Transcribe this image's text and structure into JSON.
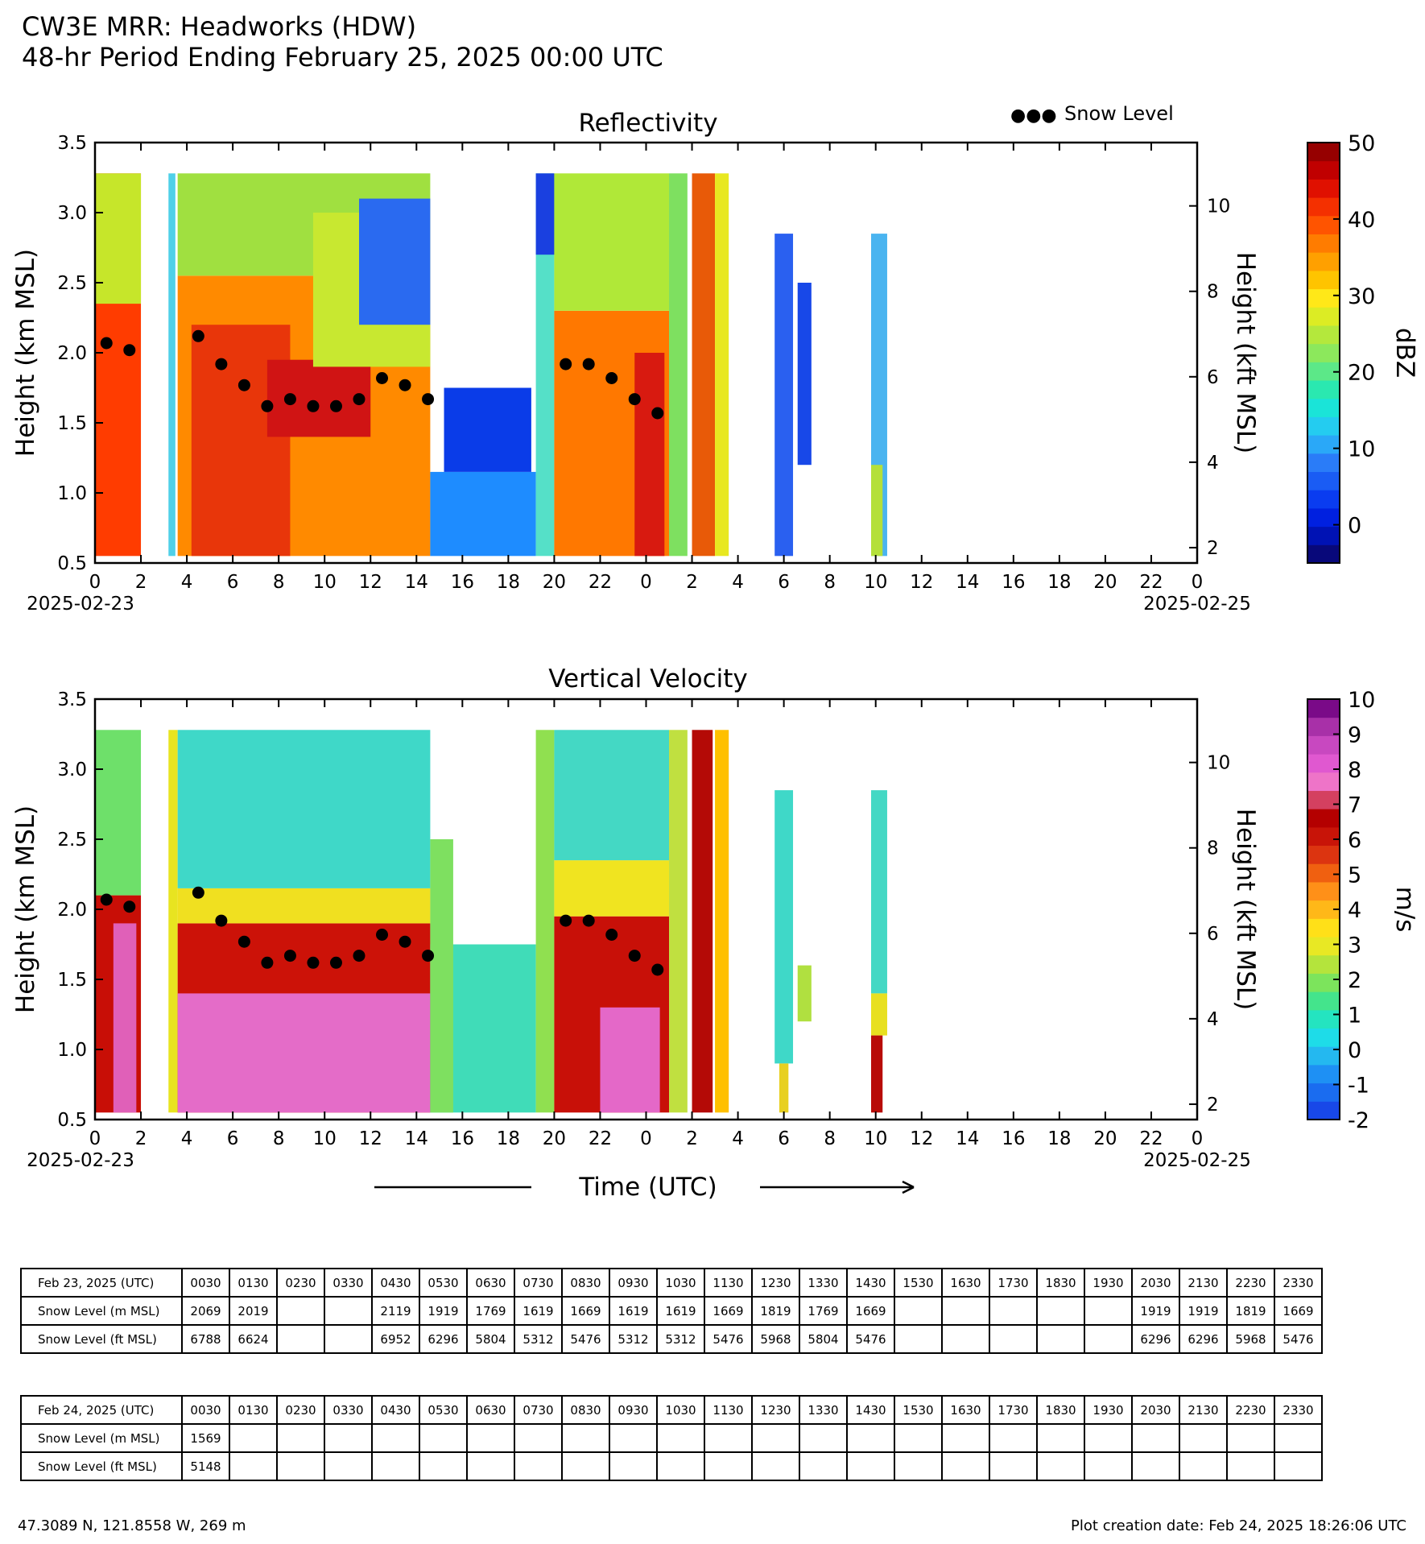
{
  "header": {
    "title_line1": "CW3E MRR: Headworks (HDW)",
    "title_line2": "48-hr Period Ending February 25, 2025 00:00 UTC"
  },
  "legend": {
    "snow_level_label": "Snow Level",
    "marker_glyph": "●●●"
  },
  "axes_text": {
    "y_left_label": "Height (km MSL)",
    "y_right_label": "Height (kft MSL)",
    "x_label": "Time (UTC)",
    "date_start": "2025-02-23",
    "date_end": "2025-02-25"
  },
  "chart_data": [
    {
      "type": "heatmap",
      "title": "Reflectivity",
      "ylabel": "Height (km MSL)",
      "ylabel_right": "Height (kft MSL)",
      "xlabel": "",
      "x_ticks": [
        "0",
        "2",
        "4",
        "6",
        "8",
        "10",
        "12",
        "14",
        "16",
        "18",
        "20",
        "22",
        "0",
        "2",
        "4",
        "6",
        "8",
        "10",
        "12",
        "14",
        "16",
        "18",
        "20",
        "22",
        "0"
      ],
      "xlim_hours": [
        0,
        48
      ],
      "y_ticks": [
        "0.5",
        "1.0",
        "1.5",
        "2.0",
        "2.5",
        "3.0",
        "3.5"
      ],
      "ylim": [
        0.5,
        3.5
      ],
      "y_right_ticks": [
        "2",
        "4",
        "6",
        "8",
        "10"
      ],
      "colorbar": {
        "label": "dBZ",
        "ticks": [
          "50",
          "40",
          "30",
          "20",
          "10",
          "0"
        ],
        "range": [
          -5,
          50
        ]
      },
      "legend_position": "top-right",
      "grid": false
    },
    {
      "type": "heatmap",
      "title": "Vertical Velocity",
      "ylabel": "Height (km MSL)",
      "ylabel_right": "Height (kft MSL)",
      "xlabel": "Time (UTC)",
      "x_ticks": [
        "0",
        "2",
        "4",
        "6",
        "8",
        "10",
        "12",
        "14",
        "16",
        "18",
        "20",
        "22",
        "0",
        "2",
        "4",
        "6",
        "8",
        "10",
        "12",
        "14",
        "16",
        "18",
        "20",
        "22",
        "0"
      ],
      "xlim_hours": [
        0,
        48
      ],
      "y_ticks": [
        "0.5",
        "1.0",
        "1.5",
        "2.0",
        "2.5",
        "3.0",
        "3.5"
      ],
      "ylim": [
        0.5,
        3.5
      ],
      "y_right_ticks": [
        "2",
        "4",
        "6",
        "8",
        "10"
      ],
      "colorbar": {
        "label": "m/s",
        "ticks": [
          "10",
          "9",
          "8",
          "7",
          "6",
          "5",
          "4",
          "3",
          "2",
          "1",
          "0",
          "-1",
          "-2"
        ],
        "range": [
          -2,
          10
        ]
      },
      "grid": false
    }
  ],
  "snow_level_points": [
    {
      "t": 0.5,
      "km": 2.069
    },
    {
      "t": 1.5,
      "km": 2.019
    },
    {
      "t": 4.5,
      "km": 2.119
    },
    {
      "t": 5.5,
      "km": 1.919
    },
    {
      "t": 6.5,
      "km": 1.769
    },
    {
      "t": 7.5,
      "km": 1.619
    },
    {
      "t": 8.5,
      "km": 1.669
    },
    {
      "t": 9.5,
      "km": 1.619
    },
    {
      "t": 10.5,
      "km": 1.619
    },
    {
      "t": 11.5,
      "km": 1.669
    },
    {
      "t": 12.5,
      "km": 1.819
    },
    {
      "t": 13.5,
      "km": 1.769
    },
    {
      "t": 14.5,
      "km": 1.669
    },
    {
      "t": 20.5,
      "km": 1.919
    },
    {
      "t": 21.5,
      "km": 1.919
    },
    {
      "t": 22.5,
      "km": 1.819
    },
    {
      "t": 23.5,
      "km": 1.669
    },
    {
      "t": 24.5,
      "km": 1.569
    }
  ],
  "reflectivity_blocks": [
    {
      "t0": 0.0,
      "t1": 2.0,
      "k0": 0.55,
      "k1": 3.28,
      "c": "#ff3c00"
    },
    {
      "t0": 0.0,
      "t1": 2.0,
      "k0": 2.35,
      "k1": 3.28,
      "c": "#c6e62a"
    },
    {
      "t0": 3.2,
      "t1": 3.5,
      "k0": 0.55,
      "k1": 3.28,
      "c": "#4fd0e8"
    },
    {
      "t0": 3.6,
      "t1": 14.6,
      "k0": 0.55,
      "k1": 2.55,
      "c": "#ff8a00"
    },
    {
      "t0": 4.2,
      "t1": 8.5,
      "k0": 0.55,
      "k1": 2.2,
      "c": "#e8360a"
    },
    {
      "t0": 7.5,
      "t1": 12.0,
      "k0": 1.4,
      "k1": 1.95,
      "c": "#d01414"
    },
    {
      "t0": 3.6,
      "t1": 14.6,
      "k0": 2.55,
      "k1": 3.28,
      "c": "#a0e040"
    },
    {
      "t0": 9.5,
      "t1": 14.6,
      "k0": 1.9,
      "k1": 3.0,
      "c": "#c8e830"
    },
    {
      "t0": 11.5,
      "t1": 14.6,
      "k0": 2.2,
      "k1": 3.1,
      "c": "#2a6af0"
    },
    {
      "t0": 14.6,
      "t1": 19.2,
      "k0": 0.55,
      "k1": 1.15,
      "c": "#1e8cff"
    },
    {
      "t0": 15.2,
      "t1": 19.0,
      "k0": 1.15,
      "k1": 1.75,
      "c": "#0a3ce8"
    },
    {
      "t0": 19.2,
      "t1": 20.0,
      "k0": 0.55,
      "k1": 3.28,
      "c": "#55e0c8"
    },
    {
      "t0": 19.2,
      "t1": 20.0,
      "k0": 2.7,
      "k1": 3.28,
      "c": "#1a40e0"
    },
    {
      "t0": 20.0,
      "t1": 25.0,
      "k0": 0.55,
      "k1": 2.3,
      "c": "#ff7800"
    },
    {
      "t0": 20.0,
      "t1": 25.0,
      "k0": 2.3,
      "k1": 3.28,
      "c": "#b0e838"
    },
    {
      "t0": 23.5,
      "t1": 24.8,
      "k0": 0.55,
      "k1": 2.0,
      "c": "#d81a10"
    },
    {
      "t0": 25.0,
      "t1": 25.8,
      "k0": 0.55,
      "k1": 3.28,
      "c": "#7ee060"
    },
    {
      "t0": 26.0,
      "t1": 27.0,
      "k0": 0.55,
      "k1": 3.28,
      "c": "#e85a08"
    },
    {
      "t0": 27.0,
      "t1": 27.6,
      "k0": 0.55,
      "k1": 3.28,
      "c": "#e8e820"
    },
    {
      "t0": 29.6,
      "t1": 30.4,
      "k0": 0.55,
      "k1": 2.85,
      "c": "#2a60f0"
    },
    {
      "t0": 30.6,
      "t1": 31.2,
      "k0": 1.2,
      "k1": 2.5,
      "c": "#1848e8"
    },
    {
      "t0": 33.8,
      "t1": 34.5,
      "k0": 0.55,
      "k1": 2.85,
      "c": "#4ab4f0"
    },
    {
      "t0": 33.8,
      "t1": 34.3,
      "k0": 0.55,
      "k1": 1.2,
      "c": "#b4e03a"
    }
  ],
  "velocity_blocks": [
    {
      "t0": 0.0,
      "t1": 2.0,
      "k0": 0.55,
      "k1": 2.1,
      "c": "#c80e06"
    },
    {
      "t0": 0.8,
      "t1": 1.8,
      "k0": 0.55,
      "k1": 1.9,
      "c": "#e060b8"
    },
    {
      "t0": 0.0,
      "t1": 2.0,
      "k0": 2.1,
      "k1": 3.28,
      "c": "#6ee06a"
    },
    {
      "t0": 3.2,
      "t1": 3.6,
      "k0": 0.55,
      "k1": 3.28,
      "c": "#e8e420"
    },
    {
      "t0": 3.6,
      "t1": 14.6,
      "k0": 0.55,
      "k1": 1.9,
      "c": "#cc1208"
    },
    {
      "t0": 3.6,
      "t1": 14.6,
      "k0": 0.55,
      "k1": 1.4,
      "c": "#e46cc8"
    },
    {
      "t0": 3.6,
      "t1": 14.6,
      "k0": 1.9,
      "k1": 2.15,
      "c": "#f0e020"
    },
    {
      "t0": 3.6,
      "t1": 14.6,
      "k0": 2.15,
      "k1": 3.28,
      "c": "#3fd8c8"
    },
    {
      "t0": 14.6,
      "t1": 19.2,
      "k0": 0.55,
      "k1": 1.75,
      "c": "#40dcb8"
    },
    {
      "t0": 14.6,
      "t1": 15.6,
      "k0": 0.55,
      "k1": 2.5,
      "c": "#7ee060"
    },
    {
      "t0": 19.2,
      "t1": 20.0,
      "k0": 0.55,
      "k1": 3.28,
      "c": "#90e050"
    },
    {
      "t0": 20.0,
      "t1": 25.0,
      "k0": 0.55,
      "k1": 1.95,
      "c": "#c81008"
    },
    {
      "t0": 22.0,
      "t1": 24.6,
      "k0": 0.55,
      "k1": 1.3,
      "c": "#e468c8"
    },
    {
      "t0": 20.0,
      "t1": 25.0,
      "k0": 1.95,
      "k1": 2.35,
      "c": "#f0e420"
    },
    {
      "t0": 20.0,
      "t1": 25.0,
      "k0": 2.35,
      "k1": 3.28,
      "c": "#44d8c4"
    },
    {
      "t0": 25.0,
      "t1": 25.8,
      "k0": 0.55,
      "k1": 3.28,
      "c": "#c0e040"
    },
    {
      "t0": 26.0,
      "t1": 26.9,
      "k0": 0.55,
      "k1": 3.28,
      "c": "#b40a06"
    },
    {
      "t0": 27.0,
      "t1": 27.6,
      "k0": 0.55,
      "k1": 3.28,
      "c": "#ffc000"
    },
    {
      "t0": 29.6,
      "t1": 30.4,
      "k0": 0.9,
      "k1": 2.85,
      "c": "#3fd8c8"
    },
    {
      "t0": 29.8,
      "t1": 30.2,
      "k0": 0.55,
      "k1": 0.9,
      "c": "#e8d020"
    },
    {
      "t0": 30.6,
      "t1": 31.2,
      "k0": 1.2,
      "k1": 1.6,
      "c": "#b0e040"
    },
    {
      "t0": 33.8,
      "t1": 34.5,
      "k0": 1.4,
      "k1": 2.85,
      "c": "#44d8c4"
    },
    {
      "t0": 33.8,
      "t1": 34.5,
      "k0": 1.1,
      "k1": 1.4,
      "c": "#e8e020"
    },
    {
      "t0": 33.8,
      "t1": 34.3,
      "k0": 0.55,
      "k1": 1.1,
      "c": "#b80c08"
    }
  ],
  "dbz_colors": [
    "#08087a",
    "#0012b4",
    "#0020e0",
    "#0a3cf0",
    "#1a5cf4",
    "#2a7cf8",
    "#2aa8f8",
    "#24ccf0",
    "#1ae4d8",
    "#2ae8b0",
    "#5ce888",
    "#8ce85c",
    "#b4e83c",
    "#dcec24",
    "#ffe818",
    "#ffc400",
    "#ffa000",
    "#ff7c00",
    "#ff5400",
    "#f43000",
    "#e01000",
    "#c00000",
    "#960000"
  ],
  "vel_colors": [
    "#1848e8",
    "#1a6cf0",
    "#1e90f4",
    "#24b8f0",
    "#1edce8",
    "#24e4c0",
    "#44e48c",
    "#7ce45c",
    "#b4e43c",
    "#e8e824",
    "#ffe018",
    "#ffb818",
    "#ff9018",
    "#f06010",
    "#dc3410",
    "#c81408",
    "#b40000",
    "#d44060",
    "#ee74c8",
    "#e058d0",
    "#c848c0",
    "#a830a8",
    "#7a0a88"
  ],
  "tables": [
    {
      "header": "Feb 23, 2025 (UTC)",
      "times": [
        "0030",
        "0130",
        "0230",
        "0330",
        "0430",
        "0530",
        "0630",
        "0730",
        "0830",
        "0930",
        "1030",
        "1130",
        "1230",
        "1330",
        "1430",
        "1530",
        "1630",
        "1730",
        "1830",
        "1930",
        "2030",
        "2130",
        "2230",
        "2330"
      ],
      "rows": [
        {
          "label": "Snow Level (m MSL)",
          "values": [
            "2069",
            "2019",
            "",
            "",
            "2119",
            "1919",
            "1769",
            "1619",
            "1669",
            "1619",
            "1619",
            "1669",
            "1819",
            "1769",
            "1669",
            "",
            "",
            "",
            "",
            "",
            "1919",
            "1919",
            "1819",
            "1669"
          ]
        },
        {
          "label": "Snow Level (ft MSL)",
          "values": [
            "6788",
            "6624",
            "",
            "",
            "6952",
            "6296",
            "5804",
            "5312",
            "5476",
            "5312",
            "5312",
            "5476",
            "5968",
            "5804",
            "5476",
            "",
            "",
            "",
            "",
            "",
            "6296",
            "6296",
            "5968",
            "5476"
          ]
        }
      ]
    },
    {
      "header": "Feb 24, 2025 (UTC)",
      "times": [
        "0030",
        "0130",
        "0230",
        "0330",
        "0430",
        "0530",
        "0630",
        "0730",
        "0830",
        "0930",
        "1030",
        "1130",
        "1230",
        "1330",
        "1430",
        "1530",
        "1630",
        "1730",
        "1830",
        "1930",
        "2030",
        "2130",
        "2230",
        "2330"
      ],
      "rows": [
        {
          "label": "Snow Level (m MSL)",
          "values": [
            "1569",
            "",
            "",
            "",
            "",
            "",
            "",
            "",
            "",
            "",
            "",
            "",
            "",
            "",
            "",
            "",
            "",
            "",
            "",
            "",
            "",
            "",
            "",
            ""
          ]
        },
        {
          "label": "Snow Level (ft MSL)",
          "values": [
            "5148",
            "",
            "",
            "",
            "",
            "",
            "",
            "",
            "",
            "",
            "",
            "",
            "",
            "",
            "",
            "",
            "",
            "",
            "",
            "",
            "",
            "",
            "",
            ""
          ]
        }
      ]
    }
  ],
  "footer": {
    "location": "47.3089 N, 121.8558 W, 269 m",
    "creation_date": "Plot creation date: Feb 24, 2025 18:26:06 UTC"
  }
}
